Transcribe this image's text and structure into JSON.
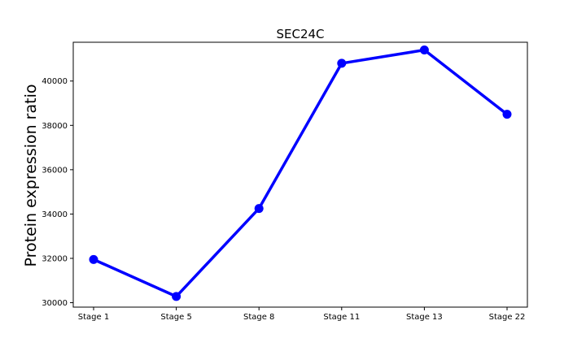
{
  "chart_data": {
    "type": "line",
    "title": "SEC24C",
    "xlabel": "",
    "ylabel": "Protein expression ratio",
    "categories": [
      "Stage 1",
      "Stage 5",
      "Stage 8",
      "Stage 11",
      "Stage 13",
      "Stage 22"
    ],
    "series": [
      {
        "values": [
          31950,
          30280,
          34250,
          40800,
          41400,
          38500
        ],
        "color": "#0000ff"
      }
    ],
    "ylim": [
      29800,
      41750
    ],
    "yticks": [
      30000,
      32000,
      34000,
      36000,
      38000,
      40000
    ],
    "ytick_labels": [
      "30000",
      "32000",
      "34000",
      "36000",
      "38000",
      "40000"
    ],
    "grid": false,
    "legend": "none"
  }
}
